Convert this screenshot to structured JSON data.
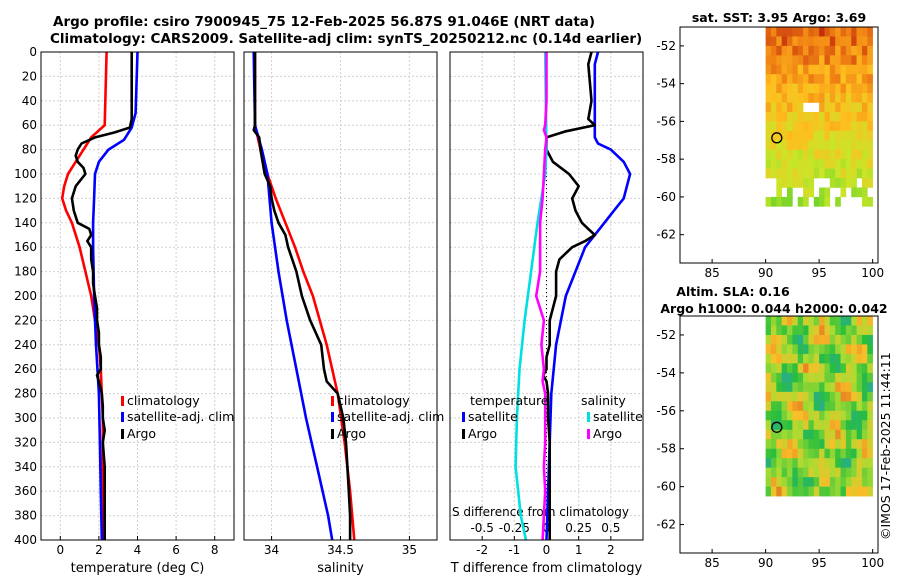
{
  "header": {
    "line1": "Argo profile: csiro 7900945_75 12-Feb-2025 56.87S 91.046E (NRT data)",
    "line2": "Climatology: CARS2009. Satellite-adj clim: synTS_20250212.nc (0.14d earlier)"
  },
  "colors": {
    "climatology": "#ff0000",
    "satellite": "#0000ff",
    "argo": "#000000",
    "sat_salinity": "#00e0e0",
    "argo_salinity": "#ff00ff"
  },
  "watermark": "©IMOS 17-Feb-2025 11:44:11",
  "chart_data": [
    {
      "type": "line",
      "id": "temperature",
      "xlabel": "temperature (deg C)",
      "ylabel": "depth",
      "xlim": [
        -1,
        9
      ],
      "ylim": [
        0,
        400
      ],
      "xticks": [
        0,
        2,
        4,
        6,
        8
      ],
      "yticks": [
        0,
        20,
        40,
        60,
        80,
        100,
        120,
        140,
        160,
        180,
        200,
        220,
        240,
        260,
        280,
        300,
        320,
        340,
        360,
        380,
        400
      ],
      "legend": [
        "climatology",
        "satellite-adj. clim",
        "Argo"
      ],
      "series": [
        {
          "name": "climatology",
          "depth": [
            0,
            60,
            70,
            80,
            90,
            100,
            110,
            120,
            130,
            140,
            160,
            180,
            200,
            220,
            240,
            260,
            280,
            300,
            320,
            340,
            360,
            380,
            400
          ],
          "values": [
            2.4,
            2.3,
            1.6,
            1.2,
            0.8,
            0.4,
            0.2,
            0.1,
            0.3,
            0.6,
            1.0,
            1.3,
            1.6,
            1.8,
            2.0,
            2.1,
            2.15,
            2.2,
            2.2,
            2.2,
            2.2,
            2.2,
            2.2
          ]
        },
        {
          "name": "satellite-adj. clim",
          "depth": [
            0,
            50,
            62,
            72,
            80,
            90,
            100,
            120,
            140,
            160,
            200,
            240,
            280,
            320,
            360,
            400
          ],
          "values": [
            4.0,
            3.9,
            3.7,
            3.3,
            2.5,
            2.0,
            1.8,
            1.75,
            1.7,
            1.7,
            1.75,
            1.85,
            2.0,
            2.05,
            2.1,
            2.15
          ]
        },
        {
          "name": "Argo",
          "depth": [
            0,
            55,
            62,
            66,
            70,
            75,
            80,
            85,
            90,
            95,
            100,
            110,
            120,
            130,
            140,
            145,
            150,
            155,
            160,
            170,
            180,
            190,
            200,
            210,
            220,
            230,
            240,
            250,
            260,
            265,
            270,
            280,
            290,
            300,
            310,
            320,
            340,
            360,
            380,
            400
          ],
          "values": [
            3.7,
            3.7,
            3.6,
            2.8,
            1.8,
            1.1,
            0.9,
            0.8,
            0.9,
            1.2,
            1.3,
            0.8,
            0.6,
            0.7,
            0.9,
            1.5,
            1.6,
            1.4,
            1.6,
            1.6,
            1.7,
            1.7,
            1.8,
            1.9,
            1.9,
            2.0,
            2.0,
            2.1,
            2.1,
            1.9,
            2.0,
            2.15,
            2.2,
            2.2,
            2.3,
            2.2,
            2.3,
            2.3,
            2.3,
            2.3
          ]
        }
      ]
    },
    {
      "type": "line",
      "id": "salinity",
      "xlabel": "salinity",
      "ylabel": "depth",
      "xlim": [
        33.8,
        35.2
      ],
      "ylim": [
        0,
        400
      ],
      "xticks": [
        34,
        34.5,
        35
      ],
      "legend": [
        "climatology",
        "satellite-adj. clim",
        "Argo"
      ],
      "series": [
        {
          "name": "climatology",
          "depth": [
            0,
            60,
            80,
            100,
            120,
            140,
            160,
            180,
            200,
            240,
            280,
            320,
            360,
            400
          ],
          "values": [
            33.88,
            33.88,
            33.92,
            33.97,
            34.03,
            34.1,
            34.17,
            34.23,
            34.3,
            34.4,
            34.48,
            34.53,
            34.57,
            34.6
          ]
        },
        {
          "name": "satellite-adj. clim",
          "depth": [
            0,
            60,
            80,
            100,
            140,
            180,
            220,
            260,
            300,
            340,
            380,
            400
          ],
          "values": [
            33.87,
            33.88,
            33.93,
            33.97,
            34.0,
            34.05,
            34.11,
            34.18,
            34.25,
            34.33,
            34.41,
            34.44
          ]
        },
        {
          "name": "Argo",
          "depth": [
            0,
            60,
            64,
            70,
            80,
            100,
            110,
            120,
            130,
            140,
            150,
            160,
            180,
            200,
            220,
            240,
            260,
            270,
            280,
            300,
            320,
            340,
            360,
            380,
            400
          ],
          "values": [
            33.88,
            33.88,
            33.87,
            33.91,
            33.92,
            33.95,
            33.99,
            34.0,
            34.02,
            34.05,
            34.1,
            34.12,
            34.18,
            34.22,
            34.28,
            34.36,
            34.38,
            34.4,
            34.48,
            34.52,
            34.54,
            34.55,
            34.56,
            34.57,
            34.57
          ]
        }
      ]
    },
    {
      "type": "line",
      "id": "differences",
      "xlabel": "T difference from climatology",
      "x2label": "S difference from climatology",
      "xlim": [
        -3,
        3
      ],
      "x2lim": [
        -0.75,
        0.75
      ],
      "ylim": [
        0,
        400
      ],
      "xticks": [
        -2,
        -1,
        0,
        1,
        2
      ],
      "x2ticks": [
        -0.5,
        -0.25,
        0,
        0.25,
        0.5
      ],
      "x2ticklabels": [
        "-0.5",
        "-0.25",
        "0",
        "0.25",
        "0.5"
      ],
      "legend_titles": [
        "temperature",
        "salinity"
      ],
      "legend": [
        "satellite",
        "Argo",
        "satellite",
        "Argo"
      ],
      "series": [
        {
          "name": "temperature satellite",
          "depth": [
            0,
            10,
            30,
            50,
            60,
            70,
            75,
            80,
            90,
            100,
            110,
            120,
            130,
            140,
            160,
            200,
            240,
            280,
            320,
            360,
            400
          ],
          "values": [
            1.6,
            1.5,
            1.5,
            1.5,
            1.5,
            1.5,
            1.6,
            2.0,
            2.4,
            2.6,
            2.5,
            2.4,
            2.1,
            1.8,
            1.2,
            0.6,
            0.3,
            0.15,
            0.1,
            0.05,
            0.0
          ]
        },
        {
          "name": "temperature Argo",
          "depth": [
            0,
            10,
            40,
            55,
            60,
            65,
            70,
            80,
            90,
            100,
            110,
            115,
            120,
            130,
            140,
            145,
            150,
            155,
            160,
            170,
            180,
            200,
            220,
            240,
            250,
            260,
            265,
            270,
            280,
            290,
            300,
            320,
            340,
            360,
            380,
            400
          ],
          "values": [
            1.4,
            1.3,
            1.4,
            1.3,
            1.5,
            0.6,
            0.0,
            0.0,
            0.2,
            0.7,
            1.0,
            0.9,
            0.8,
            0.9,
            1.1,
            1.3,
            1.5,
            1.2,
            0.8,
            0.4,
            0.3,
            0.3,
            0.1,
            0.1,
            0.0,
            0.0,
            -0.1,
            0.0,
            0.05,
            0.05,
            0.05,
            0.1,
            0.1,
            0.1,
            0.1,
            0.1
          ]
        },
        {
          "name": "salinity satellite",
          "depth": [
            0,
            80,
            100,
            140,
            180,
            220,
            260,
            300,
            340,
            380,
            400
          ],
          "values": [
            -0.01,
            0.0,
            -0.01,
            -0.07,
            -0.12,
            -0.17,
            -0.21,
            -0.23,
            -0.24,
            -0.2,
            -0.16
          ]
        },
        {
          "name": "salinity Argo",
          "depth": [
            0,
            40,
            60,
            64,
            70,
            80,
            100,
            120,
            140,
            160,
            180,
            200,
            220,
            240,
            260,
            270,
            280,
            300,
            320,
            340,
            360,
            380,
            400
          ],
          "values": [
            0.0,
            0.0,
            -0.01,
            -0.02,
            0.0,
            -0.01,
            -0.02,
            -0.03,
            -0.05,
            -0.05,
            -0.05,
            -0.08,
            -0.02,
            -0.04,
            -0.02,
            -0.03,
            -0.01,
            -0.01,
            -0.01,
            -0.02,
            -0.01,
            -0.02,
            -0.03
          ]
        }
      ]
    },
    {
      "type": "heatmap",
      "id": "sst_map",
      "title": "sat. SST: 3.95 Argo: 3.69",
      "xlim": [
        82,
        100.5
      ],
      "ylim": [
        -63.5,
        -51
      ],
      "xticks": [
        85,
        90,
        95,
        100
      ],
      "yticks": [
        -52,
        -54,
        -56,
        -58,
        -60,
        -62
      ],
      "marker": {
        "lon": 91.046,
        "lat": -56.87
      }
    },
    {
      "type": "heatmap",
      "id": "sla_map",
      "title": "Altim. SLA: 0.16",
      "subtitle": "Argo h1000: 0.044 h2000: 0.042",
      "xlim": [
        82,
        100.5
      ],
      "ylim": [
        -63.5,
        -51
      ],
      "xticks": [
        85,
        90,
        95,
        100
      ],
      "yticks": [
        -52,
        -54,
        -56,
        -58,
        -60,
        -62
      ],
      "marker": {
        "lon": 91.046,
        "lat": -56.87
      }
    }
  ]
}
